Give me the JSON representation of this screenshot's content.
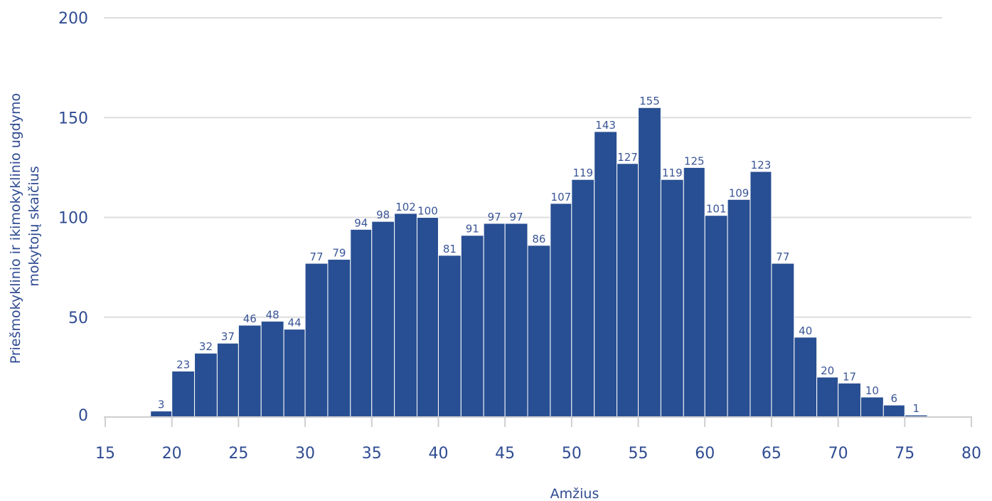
{
  "chart_data": {
    "type": "bar",
    "xlabel": "Amžius",
    "ylabel_lines": [
      "Priešmokyklinio ir ikimokyklinio ugdymo",
      "mokytojų skaičius"
    ],
    "xlim": [
      15,
      80
    ],
    "ylim": [
      0,
      200
    ],
    "x_ticks": [
      15,
      20,
      25,
      30,
      35,
      40,
      45,
      50,
      55,
      60,
      65,
      70,
      75,
      80
    ],
    "y_ticks": [
      0,
      50,
      100,
      150,
      200
    ],
    "bar_color": "#284f93",
    "grid": true,
    "bins": [
      {
        "x0": 18.4,
        "x1": 20.0,
        "value": 3,
        "label": "3"
      },
      {
        "x0": 20.0,
        "x1": 21.7,
        "value": 23,
        "label": "23"
      },
      {
        "x0": 21.7,
        "x1": 23.4,
        "value": 32,
        "label": "32"
      },
      {
        "x0": 23.4,
        "x1": 25.0,
        "value": 37,
        "label": "37"
      },
      {
        "x0": 25.0,
        "x1": 26.7,
        "value": 46,
        "label": "46"
      },
      {
        "x0": 26.7,
        "x1": 28.4,
        "value": 48,
        "label": "48"
      },
      {
        "x0": 28.4,
        "x1": 30.0,
        "value": 44,
        "label": "44"
      },
      {
        "x0": 30.0,
        "x1": 31.7,
        "value": 77,
        "label": "77"
      },
      {
        "x0": 31.7,
        "x1": 33.4,
        "value": 79,
        "label": "79"
      },
      {
        "x0": 33.4,
        "x1": 35.0,
        "value": 94,
        "label": "94"
      },
      {
        "x0": 35.0,
        "x1": 36.7,
        "value": 98,
        "label": "98"
      },
      {
        "x0": 36.7,
        "x1": 38.4,
        "value": 102,
        "label": "102"
      },
      {
        "x0": 38.4,
        "x1": 40.0,
        "value": 100,
        "label": "100"
      },
      {
        "x0": 40.0,
        "x1": 41.7,
        "value": 81,
        "label": "81"
      },
      {
        "x0": 41.7,
        "x1": 43.4,
        "value": 91,
        "label": "91"
      },
      {
        "x0": 43.4,
        "x1": 45.0,
        "value": 97,
        "label": "97"
      },
      {
        "x0": 45.0,
        "x1": 46.7,
        "value": 97,
        "label": "97"
      },
      {
        "x0": 46.7,
        "x1": 48.4,
        "value": 86,
        "label": "86"
      },
      {
        "x0": 48.4,
        "x1": 50.0,
        "value": 107,
        "label": "107"
      },
      {
        "x0": 50.0,
        "x1": 51.7,
        "value": 119,
        "label": "119"
      },
      {
        "x0": 51.7,
        "x1": 53.4,
        "value": 143,
        "label": "143"
      },
      {
        "x0": 53.4,
        "x1": 55.0,
        "value": 127,
        "label": "127"
      },
      {
        "x0": 55.0,
        "x1": 56.7,
        "value": 155,
        "label": "155"
      },
      {
        "x0": 56.7,
        "x1": 58.4,
        "value": 119,
        "label": "119"
      },
      {
        "x0": 58.4,
        "x1": 60.0,
        "value": 125,
        "label": "125"
      },
      {
        "x0": 60.0,
        "x1": 61.7,
        "value": 101,
        "label": "101"
      },
      {
        "x0": 61.7,
        "x1": 63.4,
        "value": 109,
        "label": "109"
      },
      {
        "x0": 63.4,
        "x1": 65.0,
        "value": 123,
        "label": "123"
      },
      {
        "x0": 65.0,
        "x1": 66.7,
        "value": 77,
        "label": "77"
      },
      {
        "x0": 66.7,
        "x1": 68.4,
        "value": 40,
        "label": "40"
      },
      {
        "x0": 68.4,
        "x1": 70.0,
        "value": 20,
        "label": "20"
      },
      {
        "x0": 70.0,
        "x1": 71.7,
        "value": 17,
        "label": "17"
      },
      {
        "x0": 71.7,
        "x1": 73.4,
        "value": 10,
        "label": "10"
      },
      {
        "x0": 73.4,
        "x1": 75.0,
        "value": 6,
        "label": "6"
      },
      {
        "x0": 75.0,
        "x1": 76.7,
        "value": 1,
        "label": "1"
      }
    ]
  }
}
